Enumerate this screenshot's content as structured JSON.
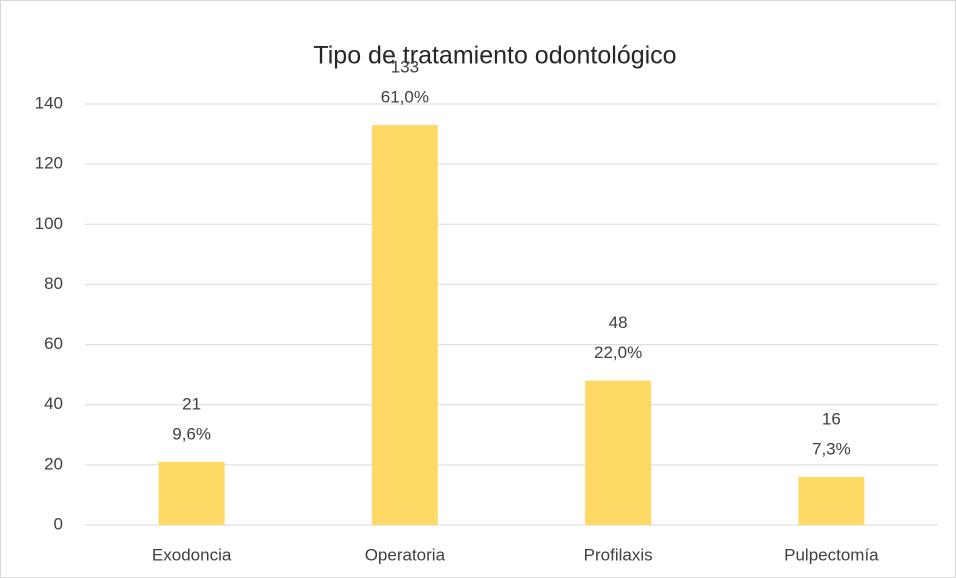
{
  "chart_data": {
    "type": "bar",
    "title": "Tipo de tratamiento odontológico",
    "categories": [
      "Exodoncia",
      "Operatoria",
      "Profilaxis",
      "Pulpectomía"
    ],
    "values": [
      21,
      133,
      48,
      16
    ],
    "percent_labels": [
      "9,6%",
      "61,0%",
      "22,0%",
      "7,3%"
    ],
    "color": "#FFD966",
    "ylim": [
      0,
      140
    ],
    "yticks": [
      0,
      20,
      40,
      60,
      80,
      100,
      120,
      140
    ],
    "grid": true
  }
}
